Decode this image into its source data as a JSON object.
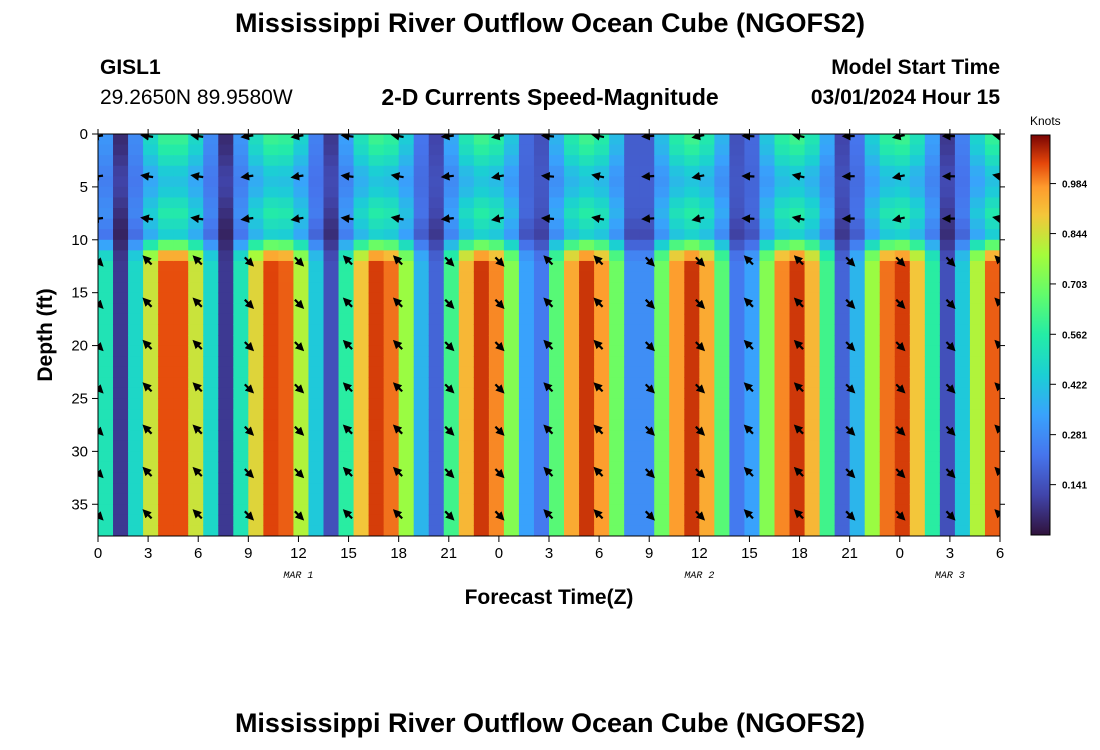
{
  "page": {
    "title_top": "Mississippi River Outflow Ocean Cube (NGOFS2)",
    "title_bottom": "Mississippi River Outflow Ocean Cube (NGOFS2)"
  },
  "station": {
    "id": "GISL1",
    "coords": "29.2650N  89.9580W"
  },
  "model": {
    "label": "Model Start Time",
    "start": "03/01/2024 Hour 15"
  },
  "chart_data": {
    "type": "heatmap",
    "title": "2-D Currents Speed-Magnitude",
    "xlabel": "Forecast Time(Z)",
    "ylabel": "Depth (ft)",
    "colorbar_label": "Knots",
    "xlim": [
      0,
      54
    ],
    "ylim": [
      38,
      0
    ],
    "x_ticks": [
      0,
      3,
      6,
      9,
      12,
      15,
      18,
      21,
      24,
      27,
      30,
      33,
      36,
      39,
      42,
      45,
      48,
      51,
      54
    ],
    "x_tick_labels": [
      "0",
      "3",
      "6",
      "9",
      "12",
      "15",
      "18",
      "21",
      "0",
      "3",
      "6",
      "9",
      "12",
      "15",
      "18",
      "21",
      "0",
      "3",
      "6"
    ],
    "y_ticks": [
      0,
      5,
      10,
      15,
      20,
      25,
      30,
      35
    ],
    "y_tick_labels": [
      "0",
      "5",
      "10",
      "15",
      "20",
      "25",
      "30",
      "35"
    ],
    "day_labels": [
      {
        "x": 12,
        "text": "MAR 1"
      },
      {
        "x": 36,
        "text": "MAR 2"
      },
      {
        "x": 51,
        "text": "MAR 3"
      }
    ],
    "colorbar_ticks": [
      0.141,
      0.281,
      0.422,
      0.562,
      0.703,
      0.844,
      0.984
    ],
    "colorbar_tick_labels": [
      "0.141",
      "0.281",
      "0.422",
      "0.562",
      "0.703",
      "0.844",
      "0.984"
    ],
    "colorbar_range": [
      0.0,
      1.12
    ],
    "arrow_times": [
      0,
      3,
      6,
      9,
      12,
      15,
      18,
      21,
      24,
      27,
      30,
      33,
      36,
      39,
      42,
      45,
      48,
      51,
      54
    ],
    "arrow_depths": [
      0,
      4,
      8,
      12,
      16,
      20,
      24,
      28,
      32,
      36
    ]
  }
}
